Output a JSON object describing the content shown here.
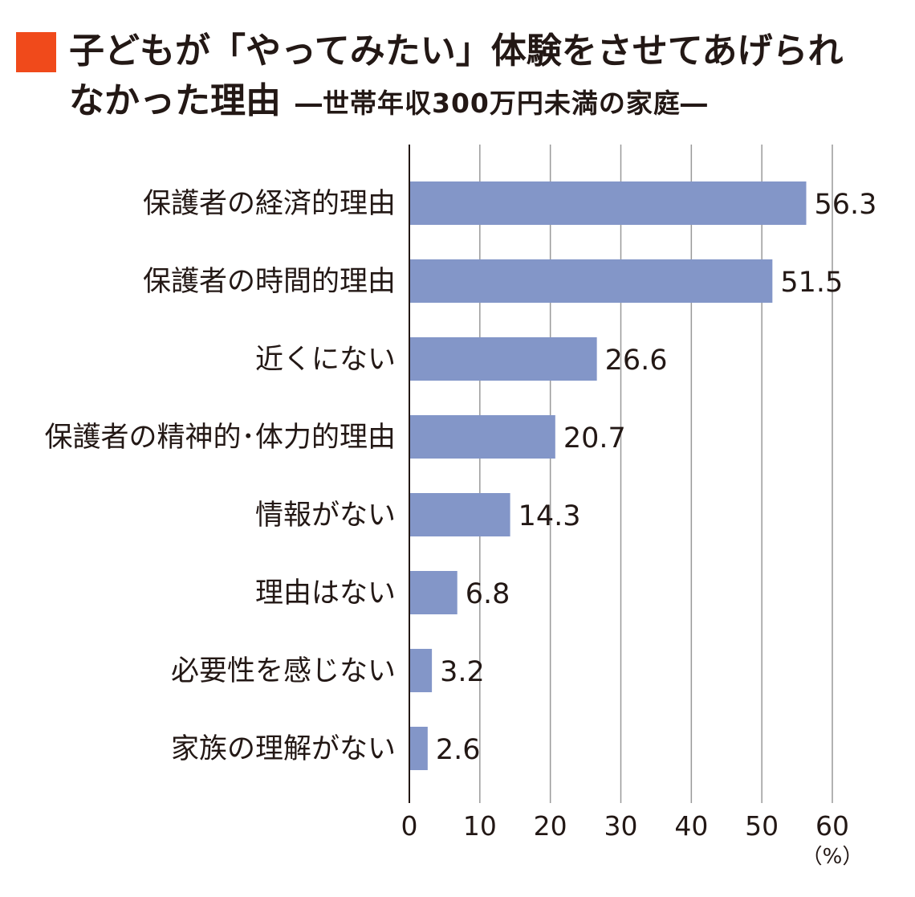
{
  "title": {
    "line1": "子どもが「やってみたい」体験をさせてあげられ",
    "line2": "なかった理由",
    "subtitle": "―世帯年収300万円未満の家庭―"
  },
  "colors": {
    "marker": "#f04a1b",
    "bar": "#8396c8",
    "grid": "#999999",
    "axis": "#231815"
  },
  "chart_data": {
    "type": "bar",
    "orientation": "horizontal",
    "categories": [
      "保護者の経済的理由",
      "保護者の時間的理由",
      "近くにない",
      "保護者の精神的･体力的理由",
      "情報がない",
      "理由はない",
      "必要性を感じない",
      "家族の理解がない"
    ],
    "values": [
      56.3,
      51.5,
      26.6,
      20.7,
      14.3,
      6.8,
      3.2,
      2.6
    ],
    "value_labels": [
      "56.3",
      "51.5",
      "26.6",
      "20.7",
      "14.3",
      "6.8",
      "3.2",
      "2.6"
    ],
    "xlim": [
      0,
      60
    ],
    "xticks": [
      0,
      10,
      20,
      30,
      40,
      50,
      60
    ],
    "xtick_labels": [
      "0",
      "10",
      "20",
      "30",
      "40",
      "50",
      "60"
    ],
    "unit": "（%）",
    "grid": true,
    "legend": "none"
  }
}
